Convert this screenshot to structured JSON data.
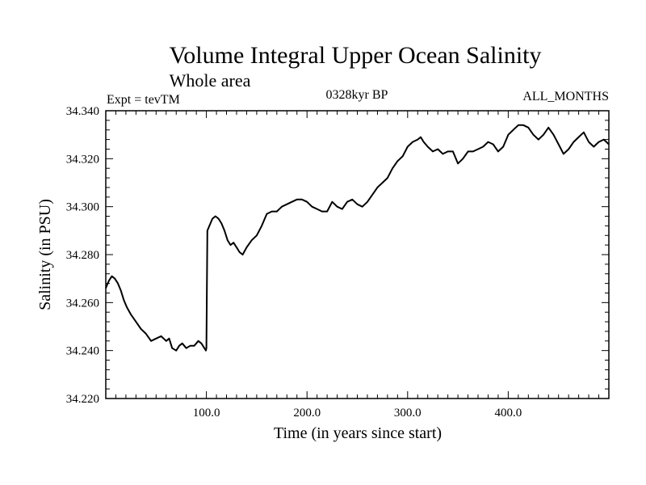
{
  "chart_data": {
    "type": "line",
    "title": "Volume Integral Upper Ocean Salinity",
    "subtitle": "Whole area",
    "left_note": "Expt = tevTM",
    "center_note": "0328kyr BP",
    "right_note": "ALL_MONTHS",
    "xlabel": "Time (in years since start)",
    "ylabel": "Salinity (in PSU)",
    "xlim": [
      0,
      500
    ],
    "ylim": [
      34.22,
      34.34
    ],
    "x_ticks": [
      100,
      200,
      300,
      400
    ],
    "x_tick_labels": [
      "100.0",
      "200.0",
      "300.0",
      "400.0"
    ],
    "y_ticks": [
      34.22,
      34.24,
      34.26,
      34.28,
      34.3,
      34.32,
      34.34
    ],
    "y_tick_labels": [
      "34.220",
      "34.240",
      "34.260",
      "34.280",
      "34.300",
      "34.320",
      "34.340"
    ],
    "grid": false,
    "series": [
      {
        "color": "#000000",
        "x": [
          0,
          3,
          6,
          9,
          12,
          15,
          18,
          21,
          25,
          30,
          35,
          40,
          45,
          50,
          55,
          60,
          63,
          66,
          70,
          73,
          76,
          80,
          84,
          88,
          92,
          95,
          98,
          99.5,
          100,
          101,
          103,
          106,
          109,
          112,
          115,
          118,
          121,
          124,
          127,
          130,
          133,
          136,
          140,
          145,
          150,
          155,
          160,
          165,
          170,
          175,
          180,
          185,
          190,
          195,
          200,
          205,
          210,
          215,
          220,
          225,
          230,
          235,
          240,
          245,
          250,
          255,
          260,
          265,
          270,
          275,
          280,
          285,
          290,
          295,
          300,
          305,
          310,
          313,
          316,
          320,
          325,
          330,
          335,
          340,
          345,
          350,
          355,
          360,
          365,
          370,
          375,
          380,
          385,
          390,
          395,
          400,
          405,
          410,
          415,
          420,
          425,
          430,
          435,
          440,
          445,
          450,
          455,
          460,
          465,
          470,
          475,
          480,
          485,
          490,
          495,
          500
        ],
        "values": [
          34.266,
          34.269,
          34.271,
          34.27,
          34.268,
          34.265,
          34.261,
          34.258,
          34.255,
          34.252,
          34.249,
          34.247,
          34.244,
          34.245,
          34.246,
          34.244,
          34.245,
          34.241,
          34.24,
          34.242,
          34.243,
          34.241,
          34.242,
          34.242,
          34.244,
          34.243,
          34.241,
          34.24,
          34.241,
          34.29,
          34.292,
          34.295,
          34.296,
          34.295,
          34.293,
          34.29,
          34.286,
          34.284,
          34.285,
          34.283,
          34.281,
          34.28,
          34.283,
          34.286,
          34.288,
          34.292,
          34.297,
          34.298,
          34.298,
          34.3,
          34.301,
          34.302,
          34.303,
          34.303,
          34.302,
          34.3,
          34.299,
          34.298,
          34.298,
          34.302,
          34.3,
          34.299,
          34.302,
          34.303,
          34.301,
          34.3,
          34.302,
          34.305,
          34.308,
          34.31,
          34.312,
          34.316,
          34.319,
          34.321,
          34.325,
          34.327,
          34.328,
          34.329,
          34.327,
          34.325,
          34.323,
          34.324,
          34.322,
          34.323,
          34.323,
          34.318,
          34.32,
          34.323,
          34.323,
          34.324,
          34.325,
          34.327,
          34.326,
          34.323,
          34.325,
          34.33,
          34.332,
          34.334,
          34.334,
          34.333,
          34.33,
          34.328,
          34.33,
          34.333,
          34.33,
          34.326,
          34.322,
          34.324,
          34.327,
          34.329,
          34.331,
          34.327,
          34.325,
          34.327,
          34.328,
          34.326
        ]
      }
    ]
  }
}
